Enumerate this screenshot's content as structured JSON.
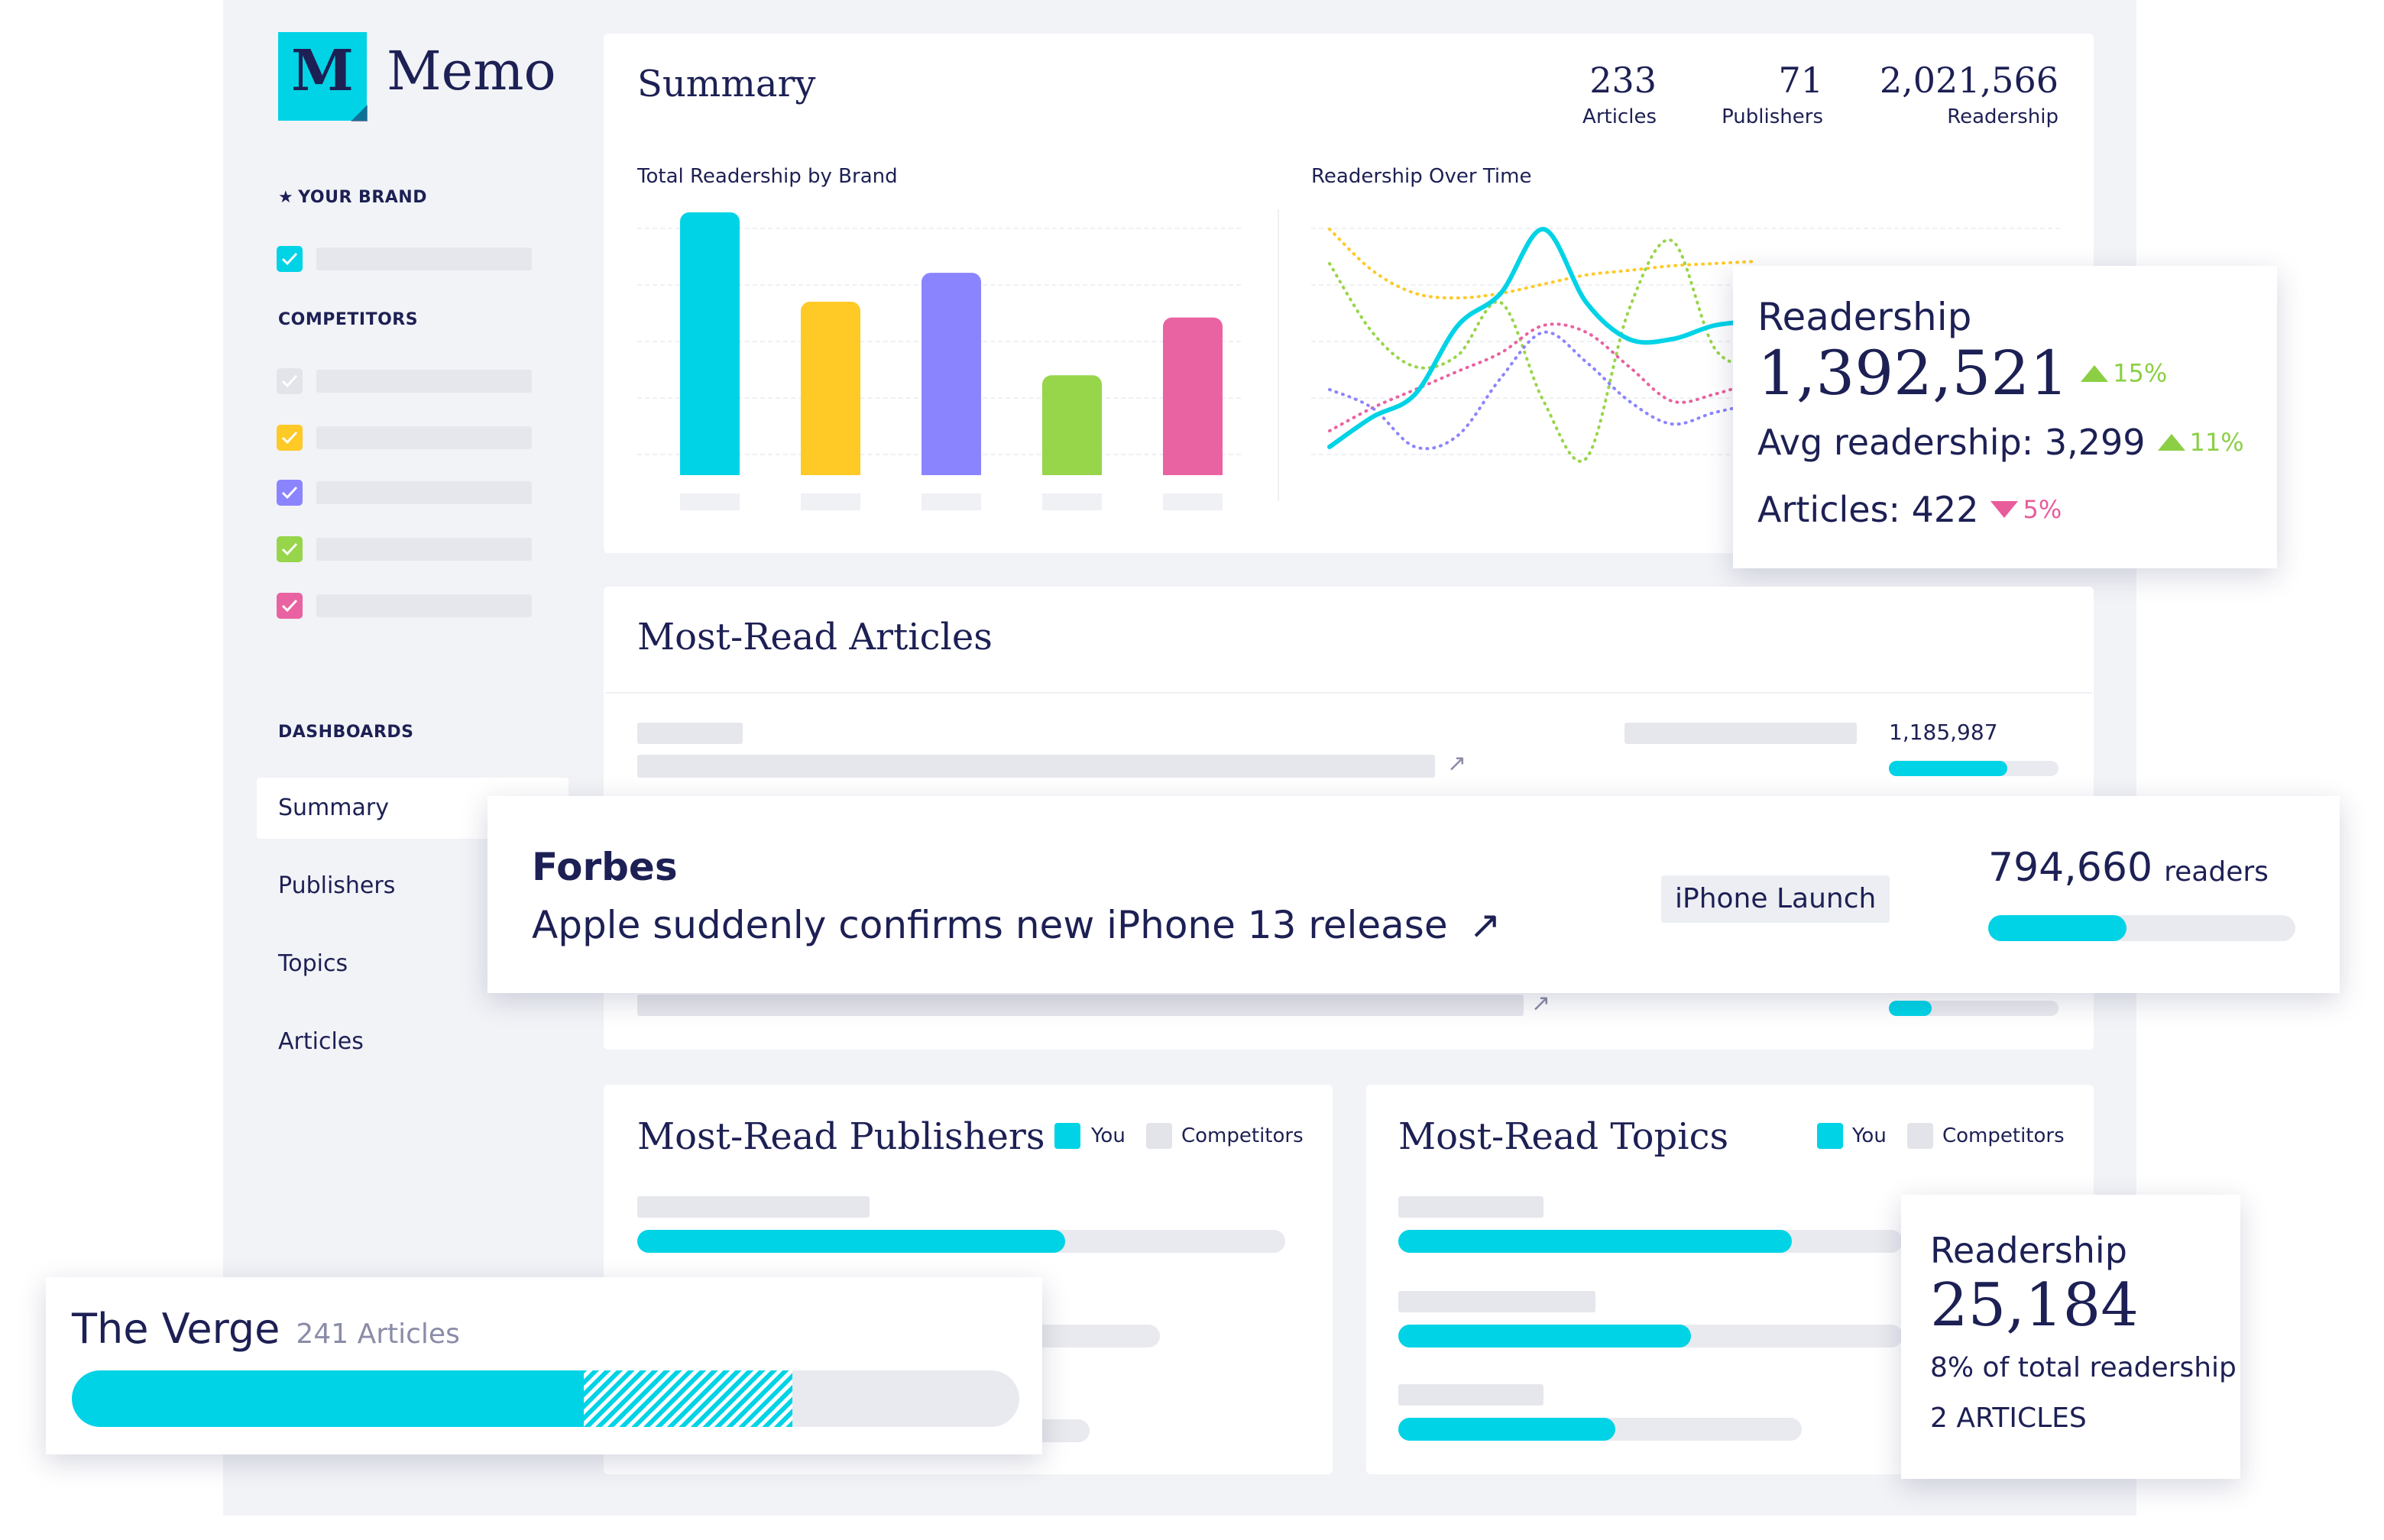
{
  "brand": {
    "logo_letter": "M",
    "name": "Memo"
  },
  "colors": {
    "accent": "#00d3e6",
    "navy": "#1d2054",
    "yellow": "#ffc926",
    "purple": "#8b84ff",
    "green": "#97d54a",
    "pink": "#e962a1",
    "gray": "#e3e4e9",
    "up": "#8ccf45",
    "down": "#e85c9c"
  },
  "sidebar": {
    "your_brand_heading": "YOUR BRAND",
    "competitors_heading": "COMPETITORS",
    "dashboards_heading": "DASHBOARDS",
    "nav": [
      "Summary",
      "Publishers",
      "Topics",
      "Articles"
    ],
    "active_nav": "Summary"
  },
  "summary": {
    "title": "Summary",
    "stats": [
      {
        "value": "233",
        "label": "Articles"
      },
      {
        "value": "71",
        "label": "Publishers"
      },
      {
        "value": "2,021,566",
        "label": "Readership"
      }
    ],
    "bar_chart_label": "Total Readership by Brand",
    "line_chart_label": "Readership Over Time"
  },
  "chart_data": [
    {
      "type": "bar",
      "title": "Total Readership by Brand",
      "values": [
        100,
        66,
        77,
        38,
        60
      ],
      "colors": [
        "#00d3e6",
        "#ffc926",
        "#8b84ff",
        "#97d54a",
        "#e962a1"
      ],
      "ylim": [
        0,
        100
      ],
      "grid": true
    },
    {
      "type": "line",
      "title": "Readership Over Time",
      "ylim": [
        0,
        100
      ],
      "series": [
        {
          "color": "#00d3e6",
          "style": "solid",
          "x": [
            0,
            1,
            2,
            3,
            4,
            5,
            6,
            7,
            8,
            9,
            10
          ],
          "y": [
            5,
            18,
            28,
            58,
            72,
            100,
            68,
            52,
            52,
            58,
            60
          ]
        },
        {
          "color": "#ffc926",
          "style": "dotted",
          "x": [
            0,
            1,
            2,
            3,
            4,
            5,
            6,
            7,
            8,
            9,
            10
          ],
          "y": [
            100,
            82,
            72,
            70,
            72,
            76,
            80,
            82,
            84,
            85,
            86
          ]
        },
        {
          "color": "#97d54a",
          "style": "dotted",
          "x": [
            0,
            1,
            2,
            3,
            4,
            5,
            6,
            7,
            8,
            9,
            10
          ],
          "y": [
            85,
            55,
            40,
            45,
            68,
            25,
            0,
            65,
            95,
            48,
            40
          ]
        },
        {
          "color": "#e962a1",
          "style": "dotted",
          "x": [
            0,
            1,
            2,
            3,
            4,
            5,
            6,
            7,
            8,
            9,
            10
          ],
          "y": [
            12,
            22,
            30,
            38,
            46,
            58,
            55,
            40,
            25,
            28,
            34
          ]
        },
        {
          "color": "#8b84ff",
          "style": "dotted",
          "x": [
            0,
            1,
            2,
            3,
            4,
            5,
            6,
            7,
            8,
            9,
            10
          ],
          "y": [
            30,
            22,
            5,
            10,
            35,
            55,
            42,
            25,
            15,
            20,
            24
          ]
        }
      ]
    }
  ],
  "readership_popup": {
    "title": "Readership",
    "value": "1,392,521",
    "value_change": "15%",
    "avg_label": "Avg readership: 3,299",
    "avg_change": "11%",
    "articles_label": "Articles: 422",
    "articles_change": "5%"
  },
  "most_read_articles": {
    "title": "Most-Read Articles",
    "row1_value": "1,185,987",
    "row1_progress": 0.7,
    "row3_progress": 0.25
  },
  "featured_article": {
    "publisher": "Forbes",
    "headline": "Apple suddenly confirms new iPhone 13 release",
    "link_icon": "↗",
    "tag": "iPhone Launch",
    "readers_value": "794,660",
    "readers_unit": "readers",
    "progress": 0.45
  },
  "most_read_publishers": {
    "title": "Most-Read Publishers",
    "legend_you": "You",
    "legend_competitors": "Competitors",
    "bars": [
      0.66
    ]
  },
  "most_read_topics": {
    "title": "Most-Read Topics",
    "legend_you": "You",
    "legend_competitors": "Competitors",
    "bars": [
      0.78,
      0.58,
      0.43
    ]
  },
  "verge_popup": {
    "publisher": "The Verge",
    "articles": "241 Articles",
    "you_fraction": 0.54,
    "hatched_fraction": 0.22
  },
  "topic_popup": {
    "title": "Readership",
    "value": "25,184",
    "share": "8% of total readership",
    "articles": "2 ARTICLES"
  }
}
